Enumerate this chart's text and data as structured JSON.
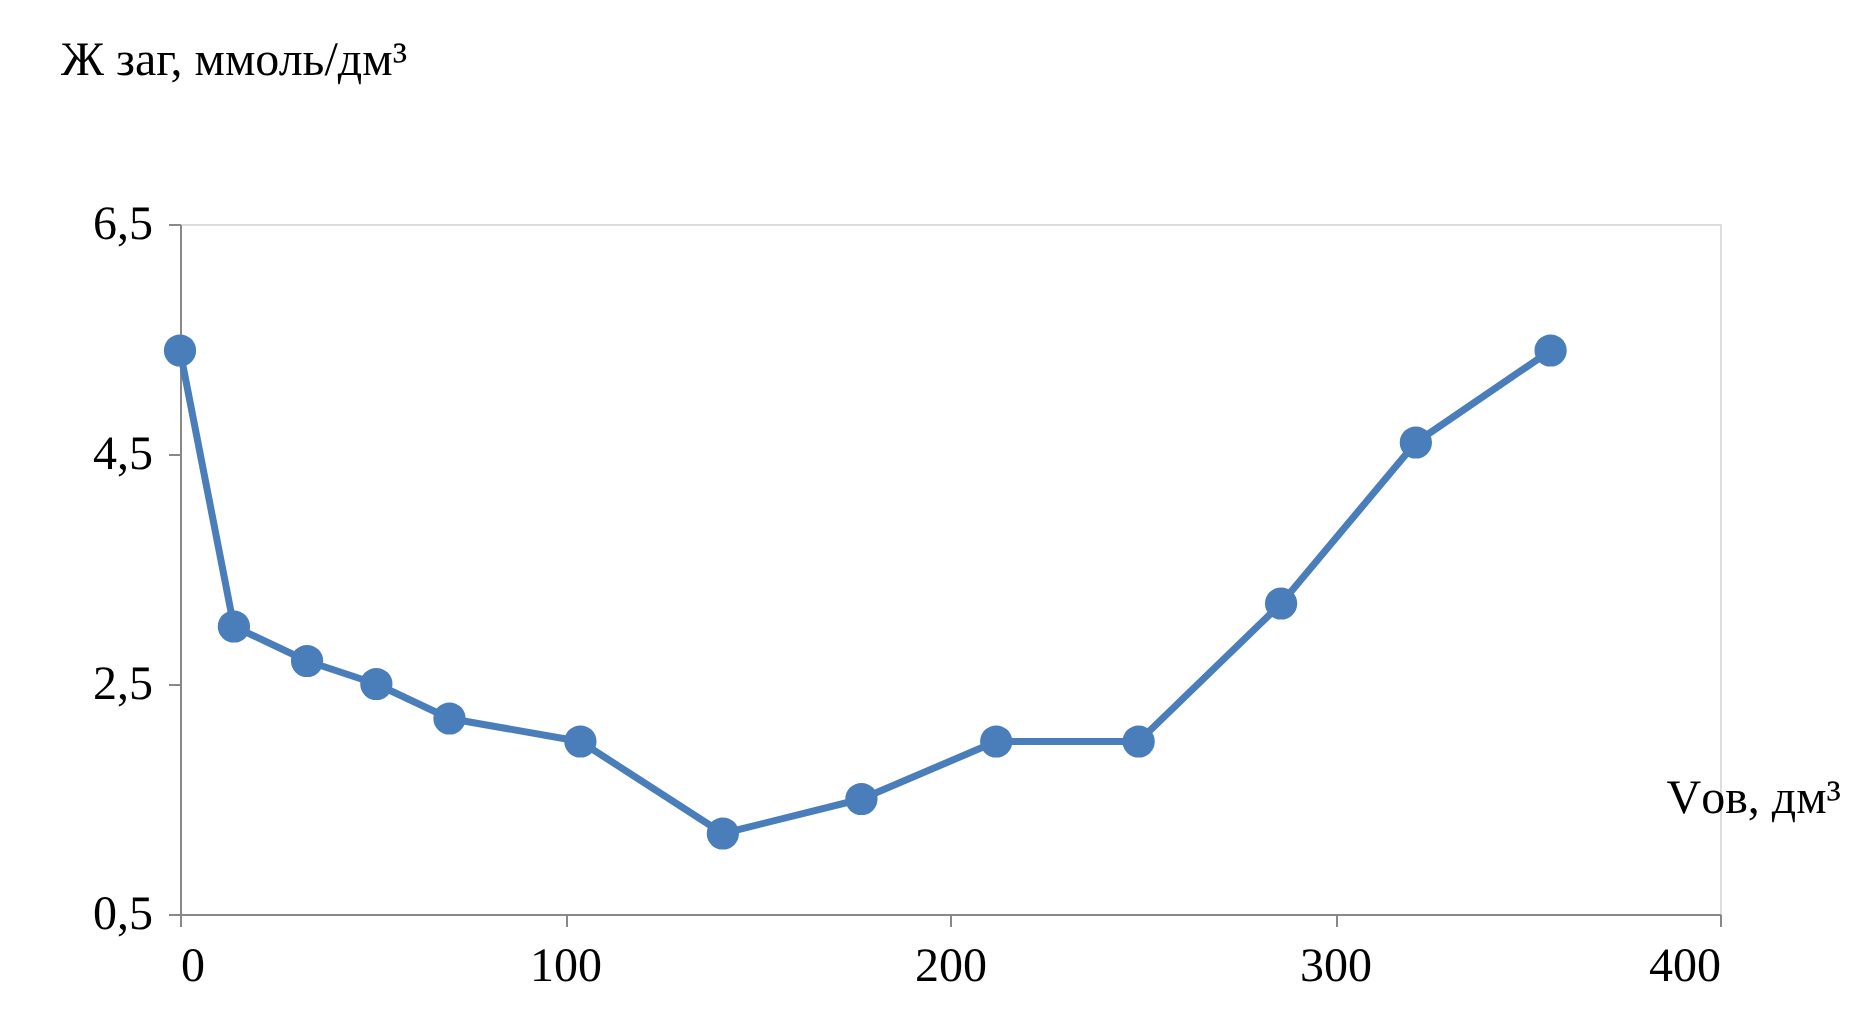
{
  "chart_data": {
    "type": "line",
    "xlabel": "Vов, дм³",
    "ylabel": "Ж заг, ммоль/дм³",
    "x": [
      0,
      14,
      33,
      51,
      70,
      104,
      141,
      177,
      212,
      249,
      286,
      321,
      356
    ],
    "series": [
      {
        "color": "#4a7ebb",
        "values": [
          5.4,
          3.0,
          2.7,
          2.5,
          2.2,
          2.0,
          1.2,
          1.5,
          2.0,
          2.0,
          3.2,
          4.6,
          5.4
        ]
      }
    ],
    "xlim": [
      0,
      400
    ],
    "xticks": [
      0,
      100,
      200,
      300,
      400
    ],
    "ylim": [
      0.5,
      6.5
    ],
    "yticks": [
      {
        "value": 0.5,
        "label": "0,5"
      },
      {
        "value": 2.5,
        "label": "2,5"
      },
      {
        "value": 4.5,
        "label": "4,5"
      },
      {
        "value": 6.5,
        "label": "6,5"
      }
    ],
    "grid": false,
    "marker": "circle",
    "line_style": "solid"
  }
}
